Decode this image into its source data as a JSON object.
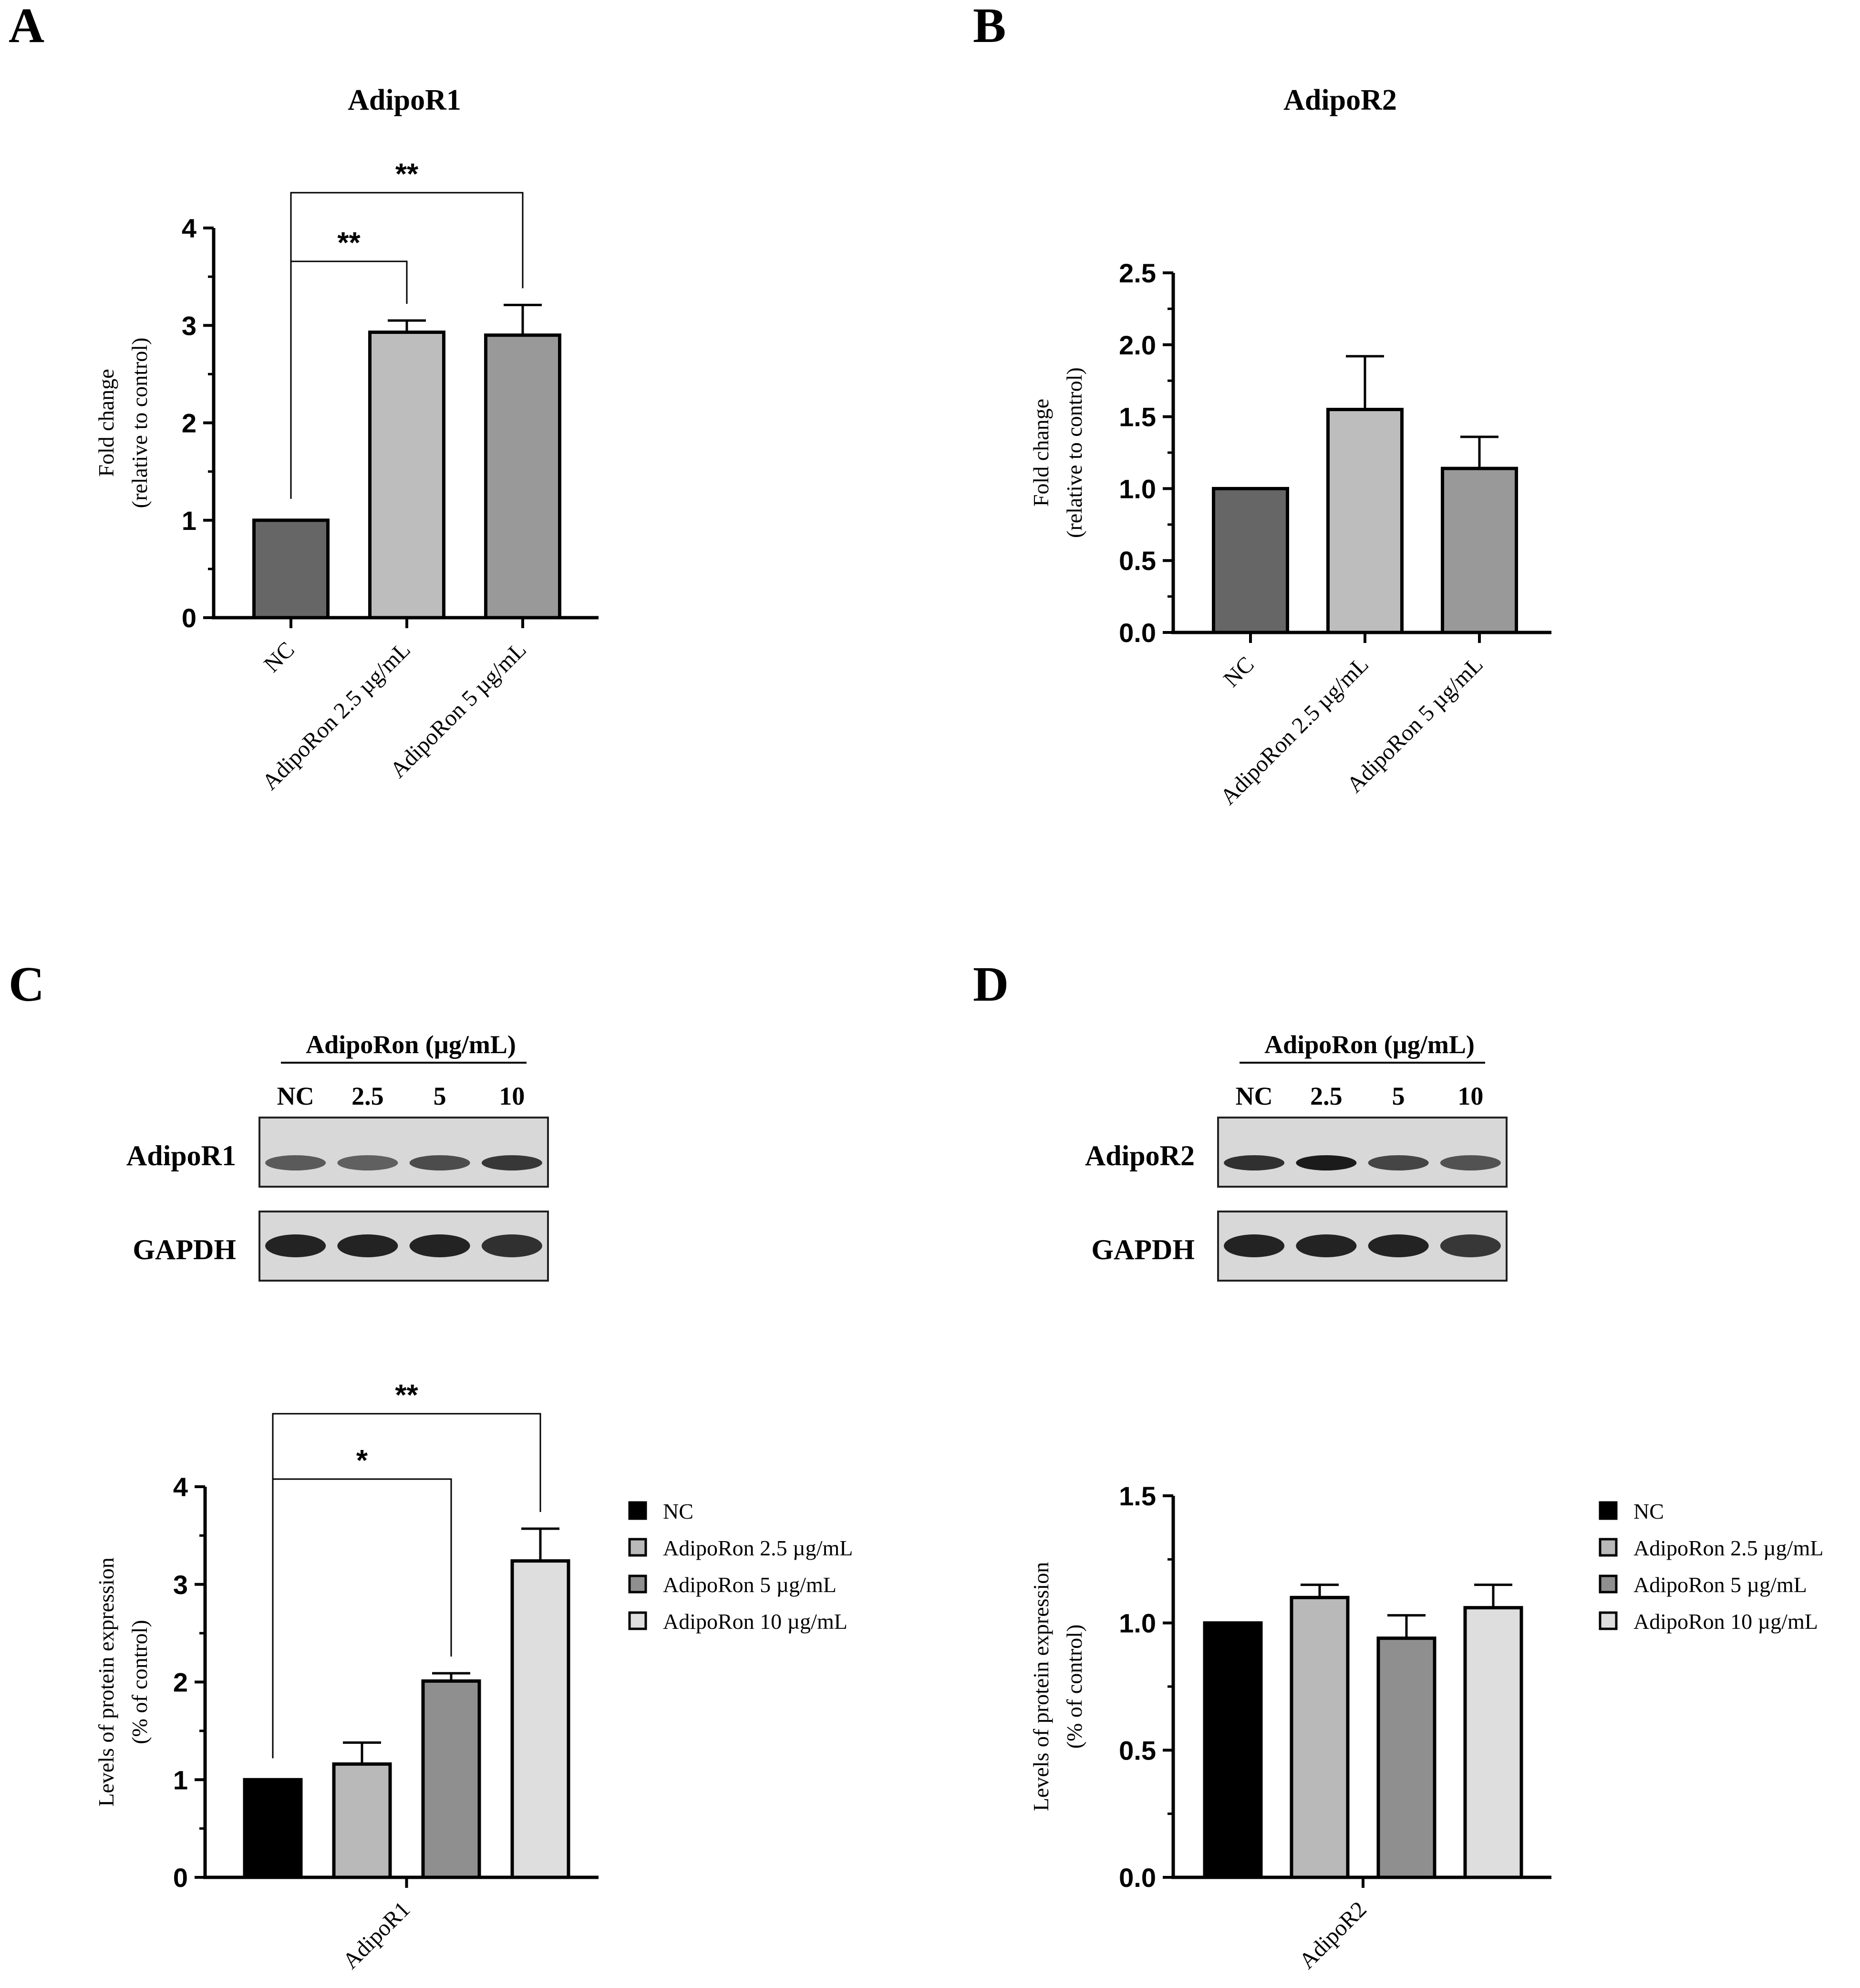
{
  "panels": {
    "A": {
      "letter": "A",
      "title": "AdipoR1"
    },
    "B": {
      "letter": "B",
      "title": "AdipoR2"
    },
    "C": {
      "letter": "C"
    },
    "D": {
      "letter": "D"
    }
  },
  "blots": {
    "C": {
      "header": "AdipoRon (µg/mL)",
      "lanes": [
        "NC",
        "2.5",
        "5",
        "10"
      ],
      "rows": [
        "AdipoR1",
        "GAPDH"
      ],
      "band_intensity": {
        "AdipoR1": [
          0.55,
          0.5,
          0.65,
          0.8
        ],
        "GAPDH": [
          0.95,
          0.95,
          0.95,
          0.85
        ]
      }
    },
    "D": {
      "header": "AdipoRon (µg/mL)",
      "lanes": [
        "NC",
        "2.5",
        "5",
        "10"
      ],
      "rows": [
        "AdipoR2",
        "GAPDH"
      ],
      "band_intensity": {
        "AdipoR2": [
          0.85,
          1.0,
          0.7,
          0.6
        ],
        "GAPDH": [
          0.95,
          0.95,
          0.95,
          0.8
        ]
      }
    }
  },
  "legend": {
    "entries": [
      "NC",
      "AdipoRon 2.5 µg/mL",
      "AdipoRon 5 µg/mL",
      "AdipoRon 10 µg/mL"
    ],
    "colors": [
      "#000000",
      "#b9b9b9",
      "#8f8f8f",
      "#dedede"
    ]
  },
  "chart_data": [
    {
      "panel": "A",
      "type": "bar",
      "title": "AdipoR1",
      "categories": [
        "NC",
        "AdipoRon 2.5 µg/mL",
        "AdipoRon 5 µg/mL"
      ],
      "values": [
        1.0,
        2.93,
        2.9
      ],
      "errors": [
        0,
        0.12,
        0.31
      ],
      "colors": [
        "#666666",
        "#bdbdbd",
        "#999999"
      ],
      "ylabel": [
        "Fold change",
        "(relative to control)"
      ],
      "ylim": [
        0,
        4
      ],
      "yticks": [
        "0",
        "1",
        "2",
        "3",
        "4"
      ],
      "significance": [
        {
          "from": 0,
          "to": 1,
          "label": "**"
        },
        {
          "from": 0,
          "to": 2,
          "label": "**"
        }
      ]
    },
    {
      "panel": "B",
      "type": "bar",
      "title": "AdipoR2",
      "categories": [
        "NC",
        "AdipoRon 2.5 µg/mL",
        "AdipoRon 5 µg/mL"
      ],
      "values": [
        1.0,
        1.55,
        1.14
      ],
      "errors": [
        0,
        0.37,
        0.22
      ],
      "colors": [
        "#666666",
        "#bdbdbd",
        "#999999"
      ],
      "ylabel": [
        "Fold change",
        "(relative to control)"
      ],
      "ylim": [
        0,
        2.5
      ],
      "yticks": [
        "0.0",
        "0.5",
        "1.0",
        "1.5",
        "2.0",
        "2.5"
      ]
    },
    {
      "panel": "C",
      "type": "bar",
      "categories": [
        "AdipoR1"
      ],
      "series": [
        {
          "name": "NC",
          "values": [
            1.0
          ],
          "errors": [
            0
          ]
        },
        {
          "name": "AdipoRon 2.5 µg/mL",
          "values": [
            1.16
          ],
          "errors": [
            0.22
          ]
        },
        {
          "name": "AdipoRon 5 µg/mL",
          "values": [
            2.01
          ],
          "errors": [
            0.08
          ]
        },
        {
          "name": "AdipoRon 10 µg/mL",
          "values": [
            3.24
          ],
          "errors": [
            0.33
          ]
        }
      ],
      "ylabel": [
        "Levels of protein expression",
        "(% of control)"
      ],
      "ylim": [
        0,
        4
      ],
      "yticks": [
        "0",
        "1",
        "2",
        "3",
        "4"
      ],
      "significance": [
        {
          "from": 0,
          "to": 2,
          "label": "*"
        },
        {
          "from": 0,
          "to": 3,
          "label": "**"
        }
      ]
    },
    {
      "panel": "D",
      "type": "bar",
      "categories": [
        "AdipoR2"
      ],
      "series": [
        {
          "name": "NC",
          "values": [
            1.0
          ],
          "errors": [
            0
          ]
        },
        {
          "name": "AdipoRon 2.5 µg/mL",
          "values": [
            1.1
          ],
          "errors": [
            0.05
          ]
        },
        {
          "name": "AdipoRon 5 µg/mL",
          "values": [
            0.94
          ],
          "errors": [
            0.09
          ]
        },
        {
          "name": "AdipoRon 10 µg/mL",
          "values": [
            1.06
          ],
          "errors": [
            0.09
          ]
        }
      ],
      "ylabel": [
        "Levels of protein expression",
        "(% of control)"
      ],
      "ylim": [
        0,
        1.5
      ],
      "yticks": [
        "0.0",
        "0.5",
        "1.0",
        "1.5"
      ]
    }
  ]
}
